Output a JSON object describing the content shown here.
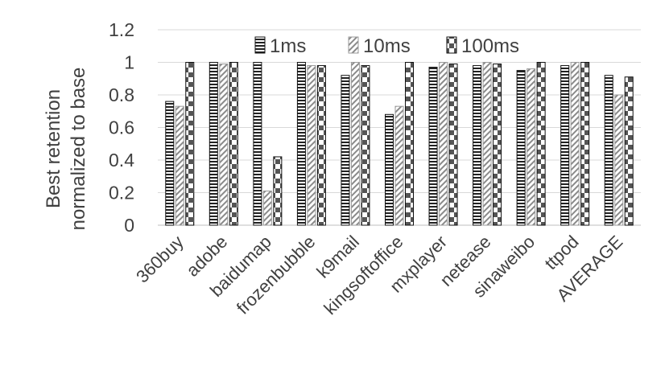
{
  "chart_data": {
    "type": "bar",
    "title": "",
    "xlabel": "",
    "ylabel_lines": [
      "Best retention",
      "normalized to base"
    ],
    "ylim": [
      0,
      1.2
    ],
    "yticks": [
      0,
      0.2,
      0.4,
      0.6,
      0.8,
      1,
      1.2
    ],
    "ytick_labels": [
      "0",
      "0.2",
      "0.4",
      "0.6",
      "0.8",
      "1",
      "1.2"
    ],
    "grid": "horizontal",
    "legend_position": "top",
    "categories": [
      "360buy",
      "adobe",
      "baidumap",
      "frozenbubble",
      "k9mail",
      "kingsoftoffice",
      "mxplayer",
      "netease",
      "sinaweibo",
      "ttpod",
      "AVERAGE"
    ],
    "series": [
      {
        "name": "1ms",
        "pattern": "horizontal-lines",
        "values": [
          0.76,
          1.0,
          1.0,
          1.0,
          0.92,
          0.68,
          0.97,
          0.98,
          0.95,
          0.98,
          0.92
        ]
      },
      {
        "name": "10ms",
        "pattern": "diagonal-hatch",
        "values": [
          0.73,
          0.99,
          0.21,
          0.98,
          1.0,
          0.73,
          1.0,
          1.0,
          0.96,
          1.0,
          0.8
        ]
      },
      {
        "name": "100ms",
        "pattern": "checker",
        "values": [
          1.0,
          1.0,
          0.42,
          0.98,
          0.98,
          1.0,
          0.99,
          0.99,
          1.0,
          1.0,
          0.91
        ]
      }
    ]
  }
}
